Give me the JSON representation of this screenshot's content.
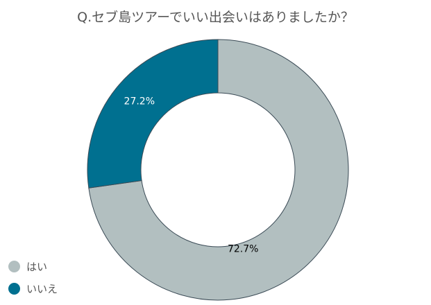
{
  "chart_data": {
    "type": "pie",
    "title": "Q.セブ島ツアーでいい出会いはありましたか？",
    "categories": [
      "はい",
      "いいえ"
    ],
    "values": [
      72.7,
      27.2
    ],
    "value_labels": [
      "72.7%",
      "27.2%"
    ],
    "colors": [
      "#b2bfc0",
      "#007090"
    ],
    "donut": true,
    "legend_position": "bottom-left"
  }
}
